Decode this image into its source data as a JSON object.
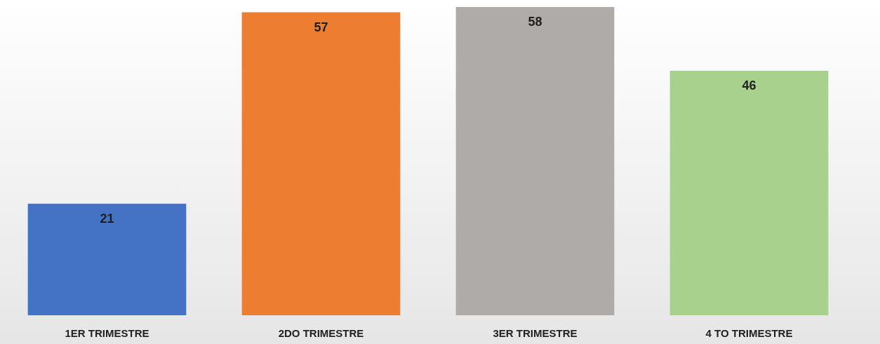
{
  "chart_data": {
    "type": "bar",
    "categories": [
      "1ER TRIMESTRE",
      "2DO TRIMESTRE",
      "3ER TRIMESTRE",
      "4 TO TRIMESTRE"
    ],
    "values": [
      21,
      57,
      58,
      46
    ],
    "colors": [
      "#4472c4",
      "#ed7d31",
      "#aeaba9",
      "#a9d18e"
    ],
    "data_labels": true
  }
}
